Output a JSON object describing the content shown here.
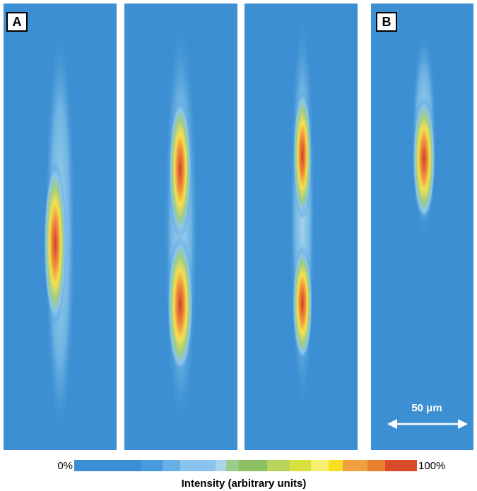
{
  "panels": {
    "a_label": "A",
    "b_label": "B",
    "scale_bar": "50 μm"
  },
  "colorbar": {
    "min_label": "0%",
    "max_label": "100%",
    "title": "Intensity (arbitrary units)"
  }
}
